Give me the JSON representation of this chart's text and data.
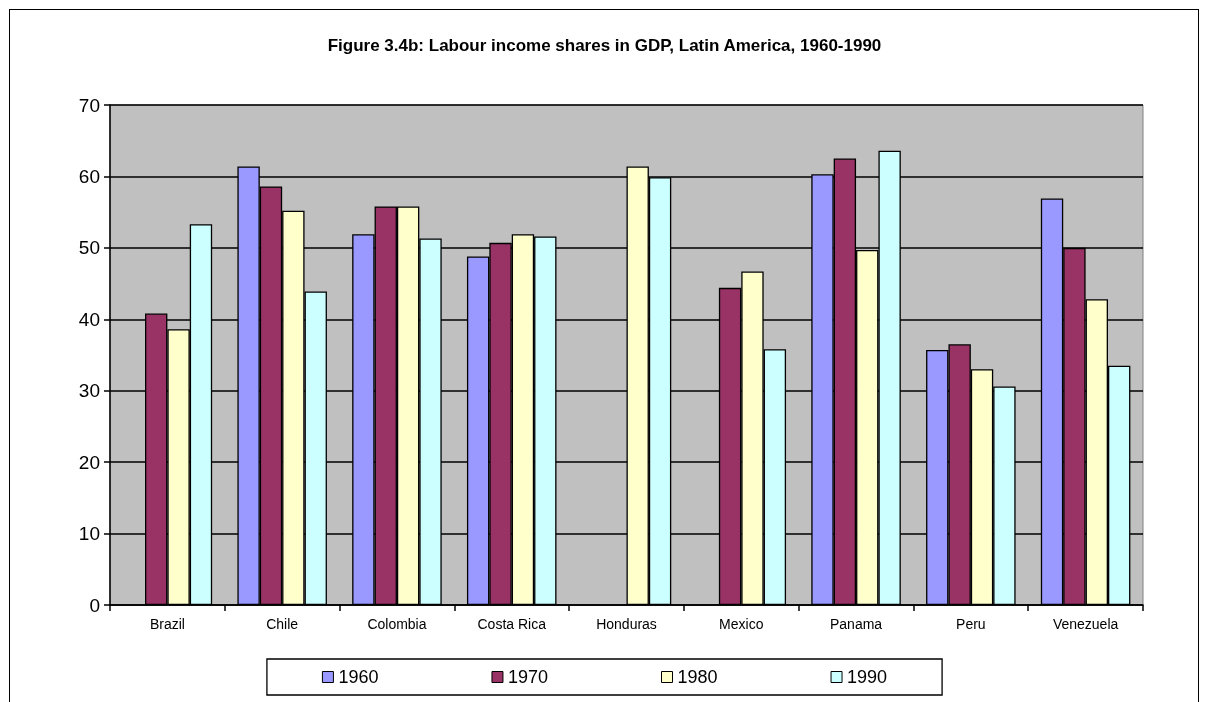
{
  "chart_data": {
    "type": "bar",
    "title": "Figure 3.4b: Labour income shares in GDP, Latin America, 1960-1990",
    "categories": [
      "Brazil",
      "Chile",
      "Colombia",
      "Costa Rica",
      "Honduras",
      "Mexico",
      "Panama",
      "Peru",
      "Venezuela"
    ],
    "series": [
      {
        "name": "1960",
        "color": "#9999ff",
        "values": [
          null,
          61.4,
          51.9,
          48.8,
          null,
          null,
          60.3,
          35.7,
          56.9
        ]
      },
      {
        "name": "1970",
        "color": "#993366",
        "values": [
          40.8,
          58.6,
          55.8,
          50.7,
          null,
          44.4,
          62.5,
          36.5,
          50.0
        ]
      },
      {
        "name": "1980",
        "color": "#ffffcc",
        "values": [
          38.6,
          55.2,
          55.8,
          51.9,
          61.4,
          46.7,
          49.7,
          33.0,
          42.8
        ]
      },
      {
        "name": "1990",
        "color": "#ccffff",
        "values": [
          53.3,
          43.9,
          51.3,
          51.6,
          59.9,
          35.8,
          63.6,
          30.6,
          33.5
        ]
      }
    ],
    "ylim": [
      0,
      70
    ],
    "yticks": [
      0,
      10,
      20,
      30,
      40,
      50,
      60,
      70
    ],
    "grid": "y",
    "legend": "bottom"
  }
}
